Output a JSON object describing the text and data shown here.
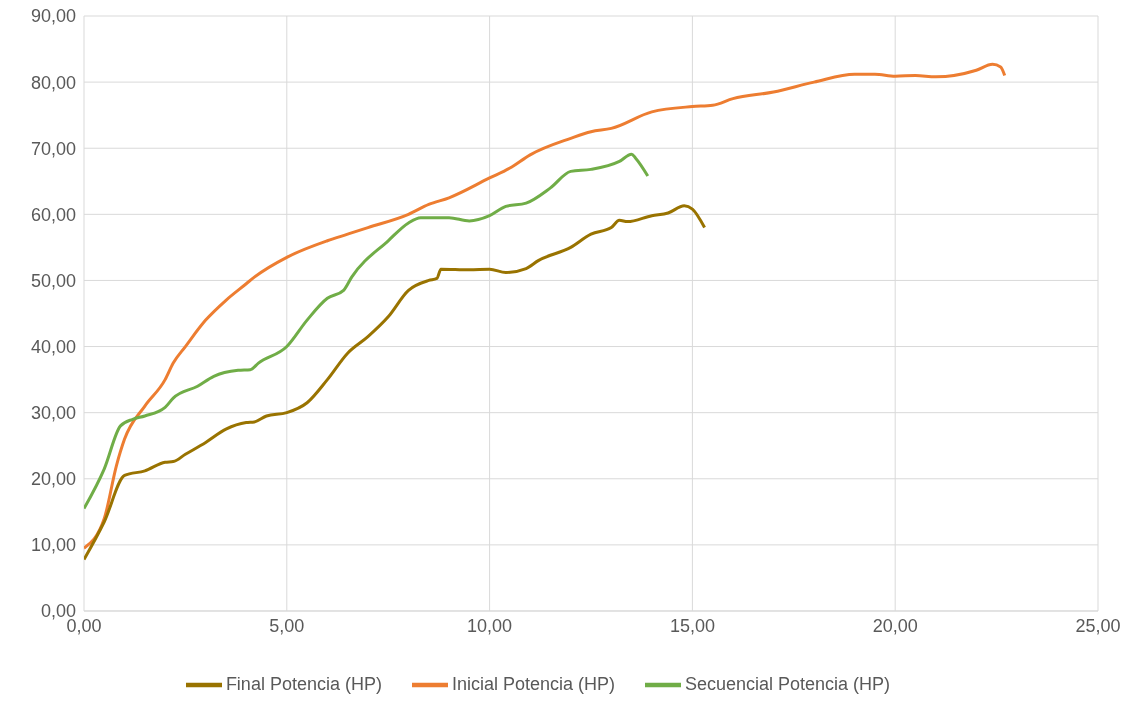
{
  "chart_data": {
    "type": "line",
    "xlim": [
      0,
      25
    ],
    "ylim": [
      0,
      90
    ],
    "xticks": [
      {
        "value": 0,
        "label": "0,00"
      },
      {
        "value": 5,
        "label": "5,00"
      },
      {
        "value": 10,
        "label": "10,00"
      },
      {
        "value": 15,
        "label": "15,00"
      },
      {
        "value": 20,
        "label": "20,00"
      },
      {
        "value": 25,
        "label": "25,00"
      }
    ],
    "yticks": [
      {
        "value": 0,
        "label": "0,00"
      },
      {
        "value": 10,
        "label": "10,00"
      },
      {
        "value": 20,
        "label": "20,00"
      },
      {
        "value": 30,
        "label": "30,00"
      },
      {
        "value": 40,
        "label": "40,00"
      },
      {
        "value": 50,
        "label": "50,00"
      },
      {
        "value": 60,
        "label": "60,00"
      },
      {
        "value": 70,
        "label": "70,00"
      },
      {
        "value": 80,
        "label": "80,00"
      },
      {
        "value": 90,
        "label": "90,00"
      }
    ],
    "grid": true,
    "legend": "bottom",
    "marker": "none",
    "line_style": "solid",
    "series": [
      {
        "name": "Inicial Potencia (HP)",
        "color": "#ed7d31",
        "x": [
          0,
          0.5,
          0.8,
          1,
          1.5,
          2,
          2.2,
          2.5,
          3,
          3.5,
          4,
          4.2,
          5,
          6,
          6.5,
          7,
          8,
          8.5,
          9,
          10,
          10.5,
          11,
          12,
          12.5,
          13,
          14,
          15,
          15.5,
          16,
          17,
          18,
          19,
          19.5,
          20,
          20.5,
          21,
          22,
          22.4,
          22.6,
          22.7
        ],
        "values": [
          9.5,
          14,
          22,
          26,
          31,
          35,
          37.5,
          40,
          44,
          47,
          49.5,
          50.5,
          53.5,
          56,
          57,
          58,
          60,
          61.5,
          62.5,
          65.5,
          67,
          69,
          71.5,
          72.5,
          73,
          75.5,
          76.3,
          76.5,
          77.5,
          78.5,
          80,
          81.2,
          81.2,
          80.9,
          81,
          80.8,
          81.8,
          82.7,
          82.3,
          81
        ]
      },
      {
        "name": "Secuencial Potencia (HP)",
        "color": "#70ad47",
        "x": [
          0,
          0.5,
          0.9,
          1.2,
          1.5,
          2,
          2.2,
          2.8,
          3.2,
          3.8,
          4.1,
          4.3,
          5,
          5.5,
          6,
          6.4,
          6.6,
          7.5,
          8,
          8.3,
          9,
          9.5,
          10,
          10.4,
          10.9,
          11.5,
          12,
          12.5,
          13.2,
          13.5,
          13.6,
          13.9
        ],
        "values": [
          15.5,
          21.5,
          28,
          29,
          29.5,
          30.8,
          32.2,
          34,
          35.5,
          36.4,
          36.5,
          37.5,
          40,
          44,
          47.3,
          48.5,
          50.5,
          56,
          58.7,
          59.5,
          59.5,
          59,
          59.8,
          61.2,
          61.7,
          64,
          66.5,
          66.8,
          68,
          69.1,
          68.5,
          65.8
        ]
      },
      {
        "name": "Final Potencia (HP)",
        "color": "#997300",
        "x": [
          0,
          0.5,
          1,
          1.5,
          2,
          2.2,
          2.5,
          3,
          3.5,
          4,
          4.2,
          4.5,
          5,
          5.5,
          6,
          6.5,
          7,
          7.5,
          8,
          8.5,
          8.7,
          8.8,
          9.5,
          10,
          10.4,
          10.9,
          11.2,
          12,
          12.5,
          13,
          13.2,
          13.4,
          14,
          14.4,
          14.8,
          15,
          15.3
        ],
        "values": [
          7.8,
          13.5,
          20.5,
          21.2,
          22.5,
          22.6,
          23.7,
          25.5,
          27.5,
          28.5,
          28.6,
          29.5,
          30,
          31.5,
          35,
          39,
          41.5,
          44.5,
          48.5,
          50,
          50.3,
          51.7,
          51.6,
          51.7,
          51.2,
          51.8,
          53,
          55,
          57,
          58,
          59.1,
          58.9,
          59.8,
          60.2,
          61.3,
          60.8,
          58
        ]
      }
    ]
  }
}
